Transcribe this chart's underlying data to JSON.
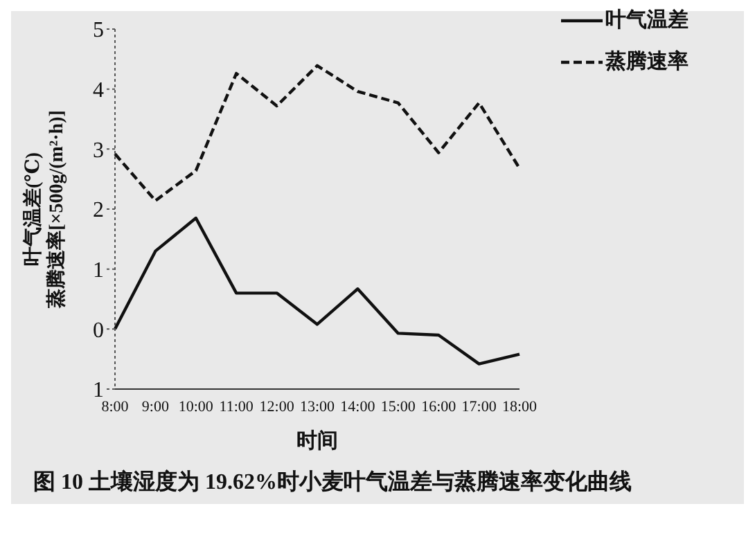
{
  "chart_data": {
    "type": "line",
    "title": "图 10  土壤湿度为 19.62%时小麦叶气温差与蒸腾速率变化曲线",
    "xlabel": "时间",
    "ylabel": "叶气温差(℃)\n蒸腾速率[×500g/(m²·h)]",
    "categories": [
      "8:00",
      "9:00",
      "10:00",
      "11:00",
      "12:00",
      "13:00",
      "14:00",
      "15:00",
      "16:00",
      "17:00",
      "18:00"
    ],
    "series": [
      {
        "name": "叶气温差",
        "color": "#111111",
        "line_style": "solid",
        "values": [
          0,
          1.3,
          1.85,
          0.6,
          0.6,
          0.08,
          0.67,
          -0.07,
          -0.1,
          -0.58,
          -0.42
        ]
      },
      {
        "name": "蒸腾速率",
        "color": "#111111",
        "line_style": "dashed",
        "values": [
          2.92,
          2.14,
          2.64,
          4.26,
          3.72,
          4.39,
          3.96,
          3.77,
          2.94,
          3.77,
          2.68
        ]
      }
    ],
    "ylim": [
      -1,
      5
    ],
    "yticks": [
      {
        "value": -1,
        "label": "1"
      },
      0,
      1,
      2,
      3,
      4,
      5
    ],
    "grid": false,
    "legend": "top right",
    "marker": "none"
  }
}
